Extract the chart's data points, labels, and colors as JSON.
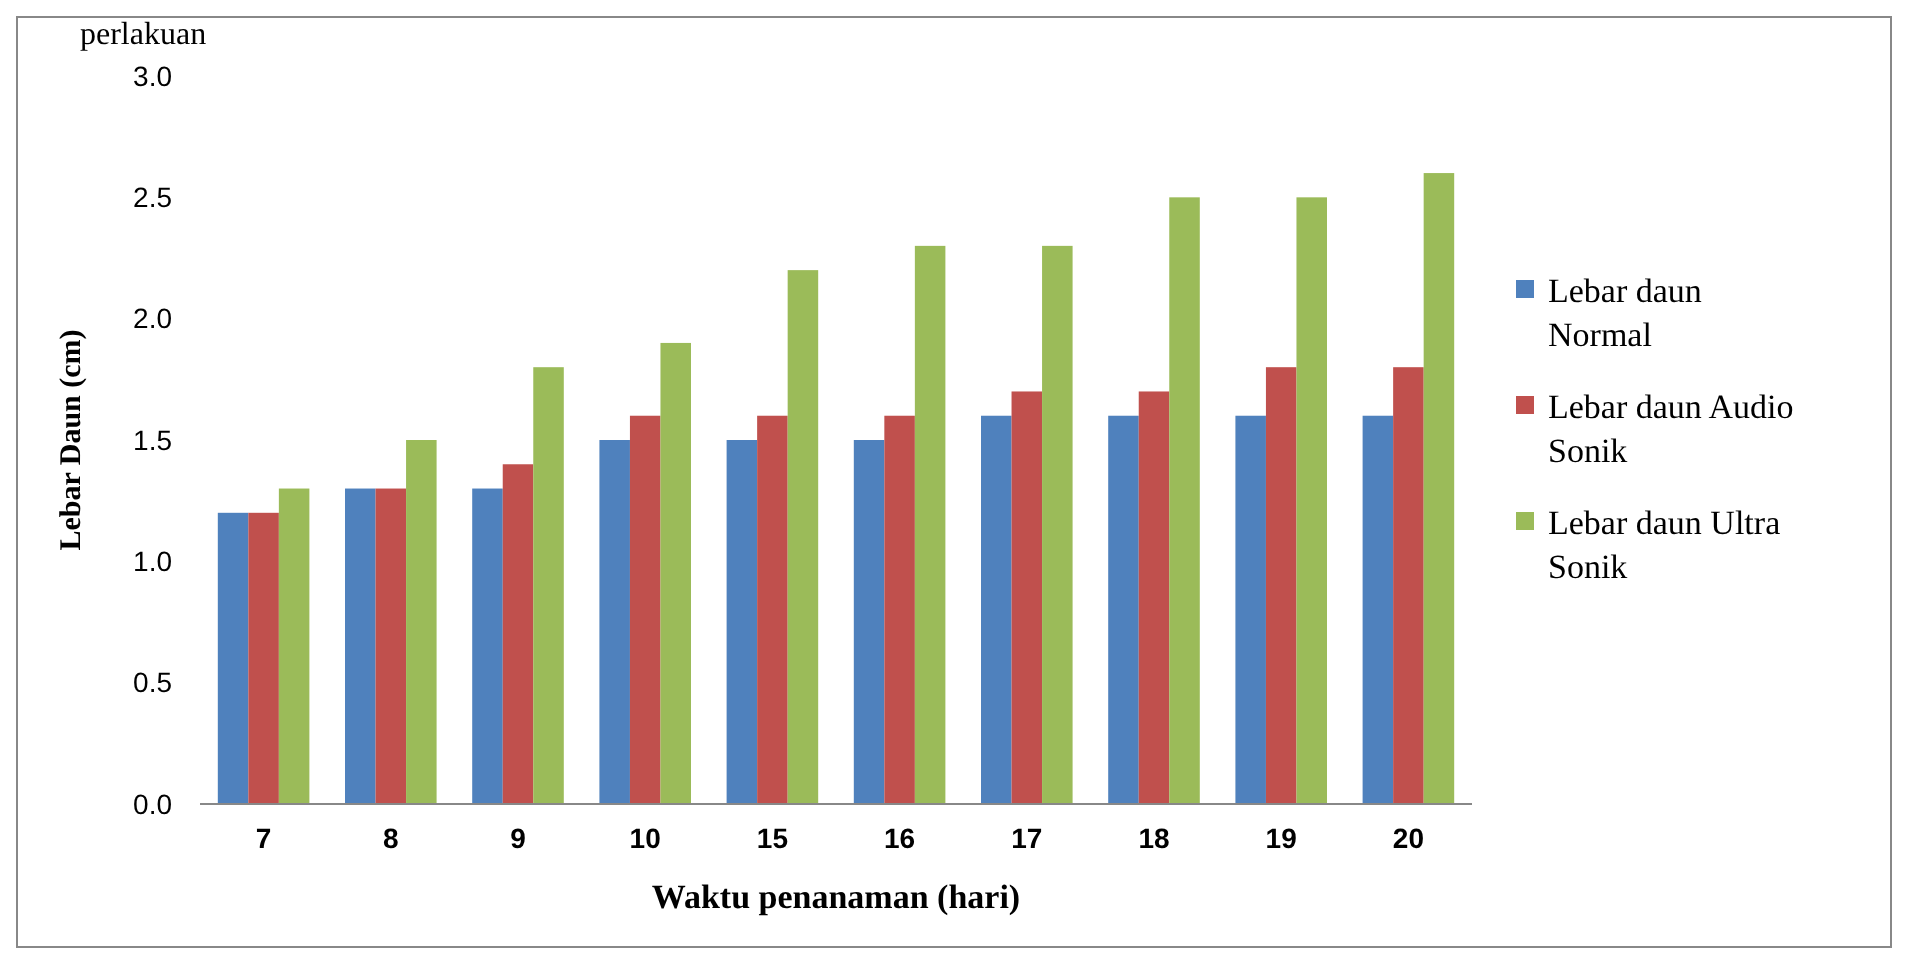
{
  "chart_data": {
    "type": "bar",
    "xlabel": "Waktu penanaman (hari)",
    "ylabel": "Lebar Daun (cm)",
    "annotations": [
      "perlakuan"
    ],
    "categories": [
      "7",
      "8",
      "9",
      "10",
      "15",
      "16",
      "17",
      "18",
      "19",
      "20"
    ],
    "series": [
      {
        "name": "Lebar daun Normal",
        "color": "#4f81bd",
        "values": [
          1.2,
          1.3,
          1.3,
          1.5,
          1.5,
          1.5,
          1.6,
          1.6,
          1.6,
          1.6
        ]
      },
      {
        "name": "Lebar daun Audio Sonik",
        "color": "#c0504d",
        "values": [
          1.2,
          1.3,
          1.4,
          1.6,
          1.6,
          1.6,
          1.7,
          1.7,
          1.8,
          1.8
        ]
      },
      {
        "name": "Lebar daun Ultra Sonik",
        "color": "#9bbb59",
        "values": [
          1.3,
          1.5,
          1.8,
          1.9,
          2.2,
          2.3,
          2.3,
          2.5,
          2.5,
          2.6
        ]
      }
    ],
    "ylim": [
      0,
      3
    ],
    "yticks": [
      {
        "value": 0,
        "label": "0.0"
      },
      {
        "value": 0.5,
        "label": "0.5"
      },
      {
        "value": 1,
        "label": "1.0"
      },
      {
        "value": 1.5,
        "label": "1.5"
      },
      {
        "value": 2,
        "label": "2.0"
      },
      {
        "value": 2.5,
        "label": "2.5"
      },
      {
        "value": 3,
        "label": "3.0"
      }
    ],
    "grid": false,
    "legend": "right"
  }
}
